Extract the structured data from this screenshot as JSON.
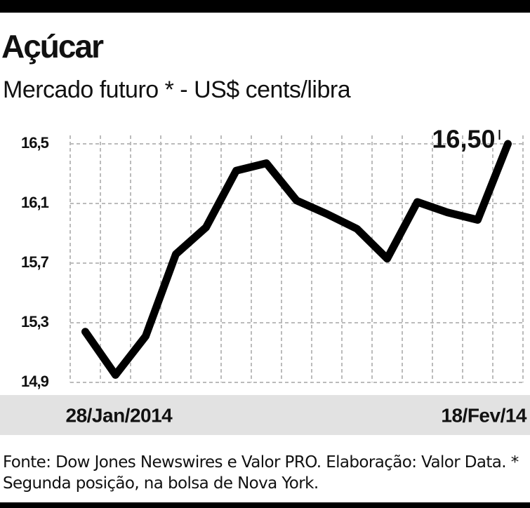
{
  "chart_data": {
    "type": "line",
    "title": "Açúcar",
    "subtitle": "Mercado futuro * -  US$ cents/libra",
    "categories": [
      "28/Jan/2014",
      null,
      null,
      null,
      null,
      null,
      null,
      null,
      null,
      null,
      null,
      null,
      null,
      null,
      "18/Fev/14"
    ],
    "values": [
      15.24,
      14.95,
      15.21,
      15.76,
      15.94,
      16.32,
      16.37,
      16.12,
      16.03,
      15.93,
      15.73,
      16.11,
      16.04,
      15.99,
      16.5
    ],
    "value_labels": [
      null,
      null,
      null,
      null,
      null,
      null,
      null,
      null,
      null,
      null,
      null,
      null,
      null,
      null,
      "16,50"
    ],
    "color": "#000000",
    "ylim": [
      14.9,
      16.5
    ],
    "yticks": [
      {
        "value": 14.9,
        "label": "14,9"
      },
      {
        "value": 15.3,
        "label": "15,3"
      },
      {
        "value": 15.7,
        "label": "15,7"
      },
      {
        "value": 16.1,
        "label": "16,1"
      },
      {
        "value": 16.5,
        "label": "16,5"
      }
    ],
    "grid": true,
    "note": "Fonte: Dow Jones Newswires e Valor PRO. Elaboração: Valor Data. * Segunda posição, na bolsa de Nova York."
  }
}
